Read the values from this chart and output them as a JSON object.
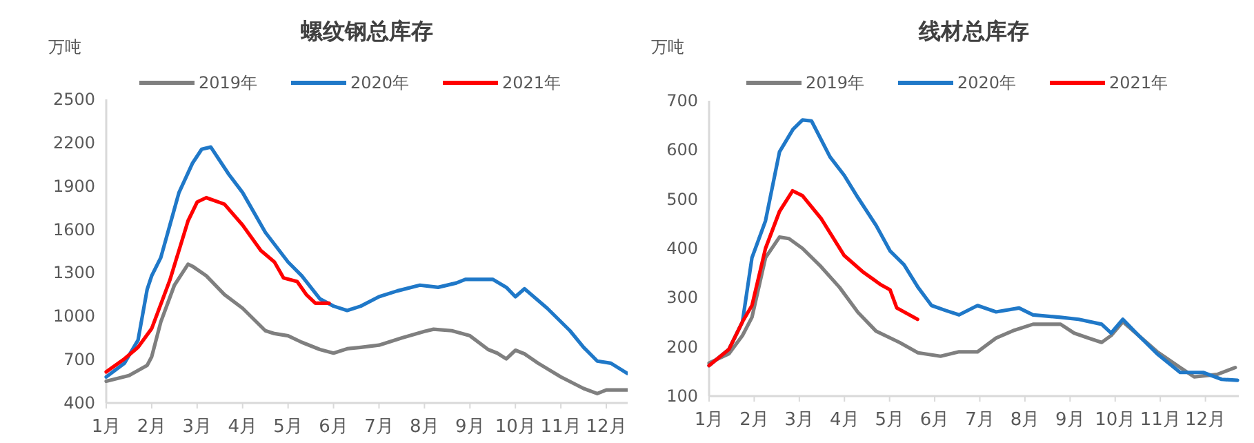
{
  "chart_data": [
    {
      "type": "line",
      "title": "螺纹钢总库存",
      "ylabel": "万吨",
      "legend": "top",
      "xlim": [
        1,
        12.47
      ],
      "xticks": [
        {
          "value": 1,
          "label": "1月"
        },
        {
          "value": 2,
          "label": "2月"
        },
        {
          "value": 3,
          "label": "3月"
        },
        {
          "value": 4,
          "label": "4月"
        },
        {
          "value": 5,
          "label": "5月"
        },
        {
          "value": 6,
          "label": "6月"
        },
        {
          "value": 7,
          "label": "7月"
        },
        {
          "value": 8,
          "label": "8月"
        },
        {
          "value": 9,
          "label": "9月"
        },
        {
          "value": 10,
          "label": "10月"
        },
        {
          "value": 11,
          "label": "11月"
        },
        {
          "value": 12,
          "label": "12月"
        }
      ],
      "ylim": [
        400,
        2500
      ],
      "yticks": [
        400,
        700,
        1000,
        1300,
        1600,
        1900,
        2200,
        2500
      ],
      "series": [
        {
          "name": "2019年",
          "color": "#7f7f7f",
          "x": [
            1.0,
            1.5,
            1.9,
            2.0,
            2.2,
            2.5,
            2.8,
            2.9,
            3.2,
            3.6,
            4.0,
            4.5,
            4.7,
            5.0,
            5.3,
            5.7,
            6.0,
            6.3,
            6.6,
            7.0,
            7.5,
            8.0,
            8.2,
            8.6,
            9.0,
            9.4,
            9.6,
            9.8,
            10.0,
            10.2,
            10.5,
            11.0,
            11.5,
            11.8,
            12.0,
            12.46
          ],
          "values": [
            550,
            590,
            660,
            720,
            960,
            1215,
            1360,
            1345,
            1280,
            1150,
            1055,
            900,
            880,
            865,
            820,
            770,
            745,
            775,
            785,
            800,
            850,
            895,
            910,
            900,
            865,
            770,
            745,
            705,
            765,
            740,
            675,
            580,
            500,
            465,
            490,
            490
          ]
        },
        {
          "name": "2020年",
          "color": "#1f78c8",
          "x": [
            1.0,
            1.4,
            1.7,
            1.9,
            2.0,
            2.2,
            2.6,
            2.9,
            3.1,
            3.3,
            3.7,
            4.0,
            4.5,
            5.0,
            5.3,
            5.7,
            6.0,
            6.3,
            6.6,
            7.0,
            7.4,
            7.9,
            8.3,
            8.7,
            8.9,
            9.5,
            9.8,
            10.0,
            10.2,
            10.7,
            11.2,
            11.5,
            11.8,
            12.1,
            12.46
          ],
          "values": [
            580,
            675,
            835,
            1185,
            1280,
            1405,
            1855,
            2060,
            2155,
            2170,
            1980,
            1855,
            1580,
            1375,
            1280,
            1120,
            1070,
            1040,
            1070,
            1135,
            1175,
            1215,
            1200,
            1230,
            1255,
            1255,
            1200,
            1135,
            1190,
            1055,
            900,
            785,
            690,
            675,
            605
          ]
        },
        {
          "name": "2021年",
          "color": "#ff0000",
          "x": [
            1.0,
            1.4,
            1.7,
            2.0,
            2.4,
            2.8,
            3.0,
            3.2,
            3.6,
            4.0,
            4.4,
            4.7,
            4.9,
            5.2,
            5.4,
            5.6,
            5.9
          ],
          "values": [
            615,
            705,
            785,
            915,
            1250,
            1660,
            1790,
            1820,
            1775,
            1630,
            1455,
            1375,
            1265,
            1240,
            1150,
            1090,
            1090
          ]
        }
      ]
    },
    {
      "type": "line",
      "title": "线材总库存",
      "ylabel": "万吨",
      "legend": "top",
      "xlim": [
        1,
        12.74
      ],
      "xticks": [
        {
          "value": 1,
          "label": "1月"
        },
        {
          "value": 2,
          "label": "2月"
        },
        {
          "value": 3,
          "label": "3月"
        },
        {
          "value": 4,
          "label": "4月"
        },
        {
          "value": 5,
          "label": "5月"
        },
        {
          "value": 6,
          "label": "6月"
        },
        {
          "value": 7,
          "label": "7月"
        },
        {
          "value": 8,
          "label": "8月"
        },
        {
          "value": 9,
          "label": "9月"
        },
        {
          "value": 10,
          "label": "10月"
        },
        {
          "value": 11,
          "label": "11月"
        },
        {
          "value": 12,
          "label": "12月"
        }
      ],
      "ylim": [
        100,
        700
      ],
      "yticks": [
        100,
        200,
        300,
        400,
        500,
        600,
        700
      ],
      "series": [
        {
          "name": "2019年",
          "color": "#7f7f7f",
          "x": [
            1.0,
            1.44,
            1.74,
            1.95,
            2.25,
            2.56,
            2.77,
            3.07,
            3.48,
            3.89,
            4.3,
            4.7,
            5.22,
            5.63,
            6.13,
            6.54,
            6.95,
            7.36,
            7.77,
            8.18,
            8.79,
            9.09,
            9.4,
            9.7,
            9.91,
            10.17,
            10.52,
            10.93,
            11.44,
            11.75,
            12.26,
            12.66
          ],
          "values": [
            167,
            186,
            223,
            260,
            381,
            423,
            420,
            400,
            363,
            321,
            270,
            232,
            209,
            188,
            181,
            190,
            190,
            218,
            234,
            246,
            246,
            228,
            218,
            209,
            223,
            251,
            223,
            190,
            158,
            139,
            144,
            158
          ]
        },
        {
          "name": "2020年",
          "color": "#1f78c8",
          "x": [
            1.0,
            1.44,
            1.74,
            1.95,
            2.25,
            2.56,
            2.86,
            3.07,
            3.27,
            3.68,
            3.99,
            4.3,
            4.7,
            5.01,
            5.32,
            5.63,
            5.93,
            6.24,
            6.54,
            6.95,
            7.36,
            7.87,
            8.18,
            8.79,
            9.19,
            9.7,
            9.91,
            10.17,
            10.52,
            10.93,
            11.44,
            11.95,
            12.36,
            12.71
          ],
          "values": [
            162,
            195,
            251,
            381,
            456,
            596,
            642,
            661,
            659,
            586,
            549,
            503,
            447,
            395,
            367,
            321,
            284,
            274,
            265,
            284,
            271,
            279,
            265,
            260,
            256,
            246,
            228,
            256,
            223,
            186,
            148,
            148,
            134,
            132
          ]
        },
        {
          "name": "2021年",
          "color": "#ff0000",
          "x": [
            1.0,
            1.44,
            1.74,
            1.95,
            2.25,
            2.56,
            2.85,
            3.07,
            3.48,
            3.99,
            4.4,
            4.81,
            5.01,
            5.16,
            5.62
          ],
          "values": [
            162,
            195,
            251,
            284,
            400,
            475,
            517,
            507,
            461,
            386,
            353,
            326,
            316,
            279,
            256
          ]
        }
      ]
    }
  ]
}
